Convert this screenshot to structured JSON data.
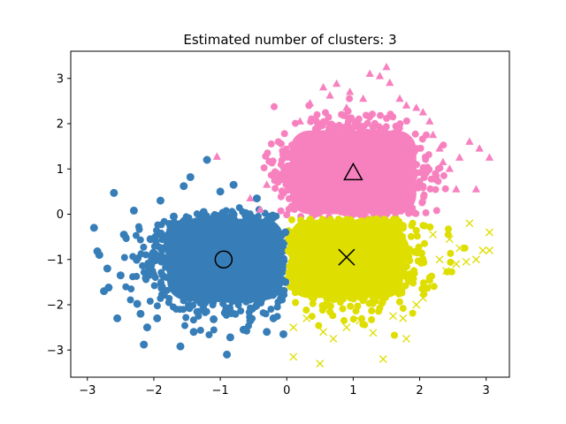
{
  "chart_data": {
    "type": "scatter",
    "title": "Estimated number of clusters: 3",
    "xlabel": "",
    "ylabel": "",
    "xlim": [
      -3.25,
      3.35
    ],
    "ylim": [
      -3.6,
      3.6
    ],
    "xticks": [
      -3,
      -2,
      -1,
      0,
      1,
      2,
      3
    ],
    "yticks": [
      -3,
      -2,
      -1,
      0,
      1,
      2,
      3
    ],
    "grid": false,
    "series": [
      {
        "cluster": 1,
        "marker": "circle",
        "color": "#377eb8",
        "center": [
          -0.95,
          -1.0
        ],
        "points": [
          [
            -2.9,
            -0.3
          ],
          [
            -2.85,
            -0.82
          ],
          [
            -2.82,
            -0.9
          ],
          [
            -2.75,
            -1.7
          ],
          [
            -2.7,
            -1.2
          ],
          [
            -2.68,
            -1.62
          ],
          [
            -2.6,
            0.47
          ],
          [
            -2.55,
            -2.3
          ],
          [
            -2.5,
            -1.35
          ],
          [
            -2.45,
            -0.45
          ],
          [
            -2.3,
            0.08
          ],
          [
            -2.25,
            -1.98
          ],
          [
            -2.2,
            -2.2
          ],
          [
            -2.15,
            -2.88
          ],
          [
            -2.1,
            -2.5
          ],
          [
            -2.05,
            -0.55
          ],
          [
            -1.95,
            -2.3
          ],
          [
            -1.9,
            0.3
          ],
          [
            -1.85,
            -1.78
          ],
          [
            -1.7,
            -0.05
          ],
          [
            -1.6,
            -2.92
          ],
          [
            -1.55,
            0.62
          ],
          [
            -1.45,
            0.82
          ],
          [
            -1.4,
            -2.6
          ],
          [
            -1.25,
            0.05
          ],
          [
            -1.2,
            1.2
          ],
          [
            -1.1,
            -2.32
          ],
          [
            -1.0,
            0.5
          ],
          [
            -0.9,
            -3.1
          ],
          [
            -0.85,
            -2.72
          ],
          [
            -0.8,
            0.65
          ],
          [
            -0.65,
            -2.55
          ],
          [
            -0.55,
            -2.35
          ],
          [
            -0.45,
            0.35
          ],
          [
            -0.3,
            -2.6
          ],
          [
            -0.2,
            -2.3
          ],
          [
            -0.05,
            -2.65
          ],
          [
            -0.02,
            -0.4
          ],
          [
            -0.02,
            -1.5
          ]
        ]
      },
      {
        "cluster": 2,
        "marker": "triangle",
        "color": "#f781bf",
        "center": [
          1.0,
          0.9
        ],
        "points": [
          [
            -1.05,
            1.27
          ],
          [
            -0.55,
            0.35
          ],
          [
            -0.4,
            0.1
          ],
          [
            -0.3,
            0.65
          ],
          [
            -0.15,
            0.9
          ],
          [
            0.0,
            1.25
          ],
          [
            0.05,
            0.72
          ],
          [
            0.2,
            2.05
          ],
          [
            0.25,
            1.72
          ],
          [
            0.35,
            2.45
          ],
          [
            0.45,
            2.1
          ],
          [
            0.55,
            2.8
          ],
          [
            0.65,
            2.62
          ],
          [
            0.75,
            2.88
          ],
          [
            0.9,
            2.35
          ],
          [
            0.95,
            2.7
          ],
          [
            1.15,
            2.55
          ],
          [
            1.25,
            3.1
          ],
          [
            1.4,
            3.05
          ],
          [
            1.5,
            3.25
          ],
          [
            1.55,
            2.9
          ],
          [
            1.7,
            2.55
          ],
          [
            1.8,
            2.4
          ],
          [
            1.95,
            2.35
          ],
          [
            2.05,
            2.25
          ],
          [
            2.15,
            2.05
          ],
          [
            2.2,
            1.75
          ],
          [
            2.3,
            1.45
          ],
          [
            2.35,
            1.15
          ],
          [
            2.45,
            1.0
          ],
          [
            2.55,
            0.55
          ],
          [
            2.6,
            1.25
          ],
          [
            2.75,
            1.6
          ],
          [
            2.85,
            0.55
          ],
          [
            2.9,
            1.45
          ],
          [
            3.05,
            1.25
          ]
        ]
      },
      {
        "cluster": 3,
        "marker": "x",
        "color": "#dede00",
        "center": [
          0.9,
          -0.95
        ],
        "points": [
          [
            0.1,
            -3.15
          ],
          [
            0.1,
            -2.5
          ],
          [
            0.3,
            -2.3
          ],
          [
            0.5,
            -3.3
          ],
          [
            0.55,
            -2.6
          ],
          [
            0.7,
            -2.75
          ],
          [
            0.9,
            -2.5
          ],
          [
            1.1,
            -2.35
          ],
          [
            1.3,
            -2.62
          ],
          [
            1.45,
            -3.2
          ],
          [
            1.6,
            -2.25
          ],
          [
            1.75,
            -2.3
          ],
          [
            1.8,
            -2.75
          ],
          [
            1.95,
            -2.0
          ],
          [
            2.05,
            -1.85
          ],
          [
            2.15,
            -1.55
          ],
          [
            2.2,
            -0.45
          ],
          [
            2.3,
            -1.0
          ],
          [
            2.4,
            -1.25
          ],
          [
            2.45,
            -0.55
          ],
          [
            2.55,
            -1.1
          ],
          [
            2.6,
            -0.75
          ],
          [
            2.7,
            -1.05
          ],
          [
            2.75,
            -0.2
          ],
          [
            2.85,
            -1.0
          ],
          [
            2.95,
            -0.8
          ],
          [
            3.05,
            -0.4
          ],
          [
            3.05,
            -0.8
          ]
        ]
      }
    ]
  }
}
